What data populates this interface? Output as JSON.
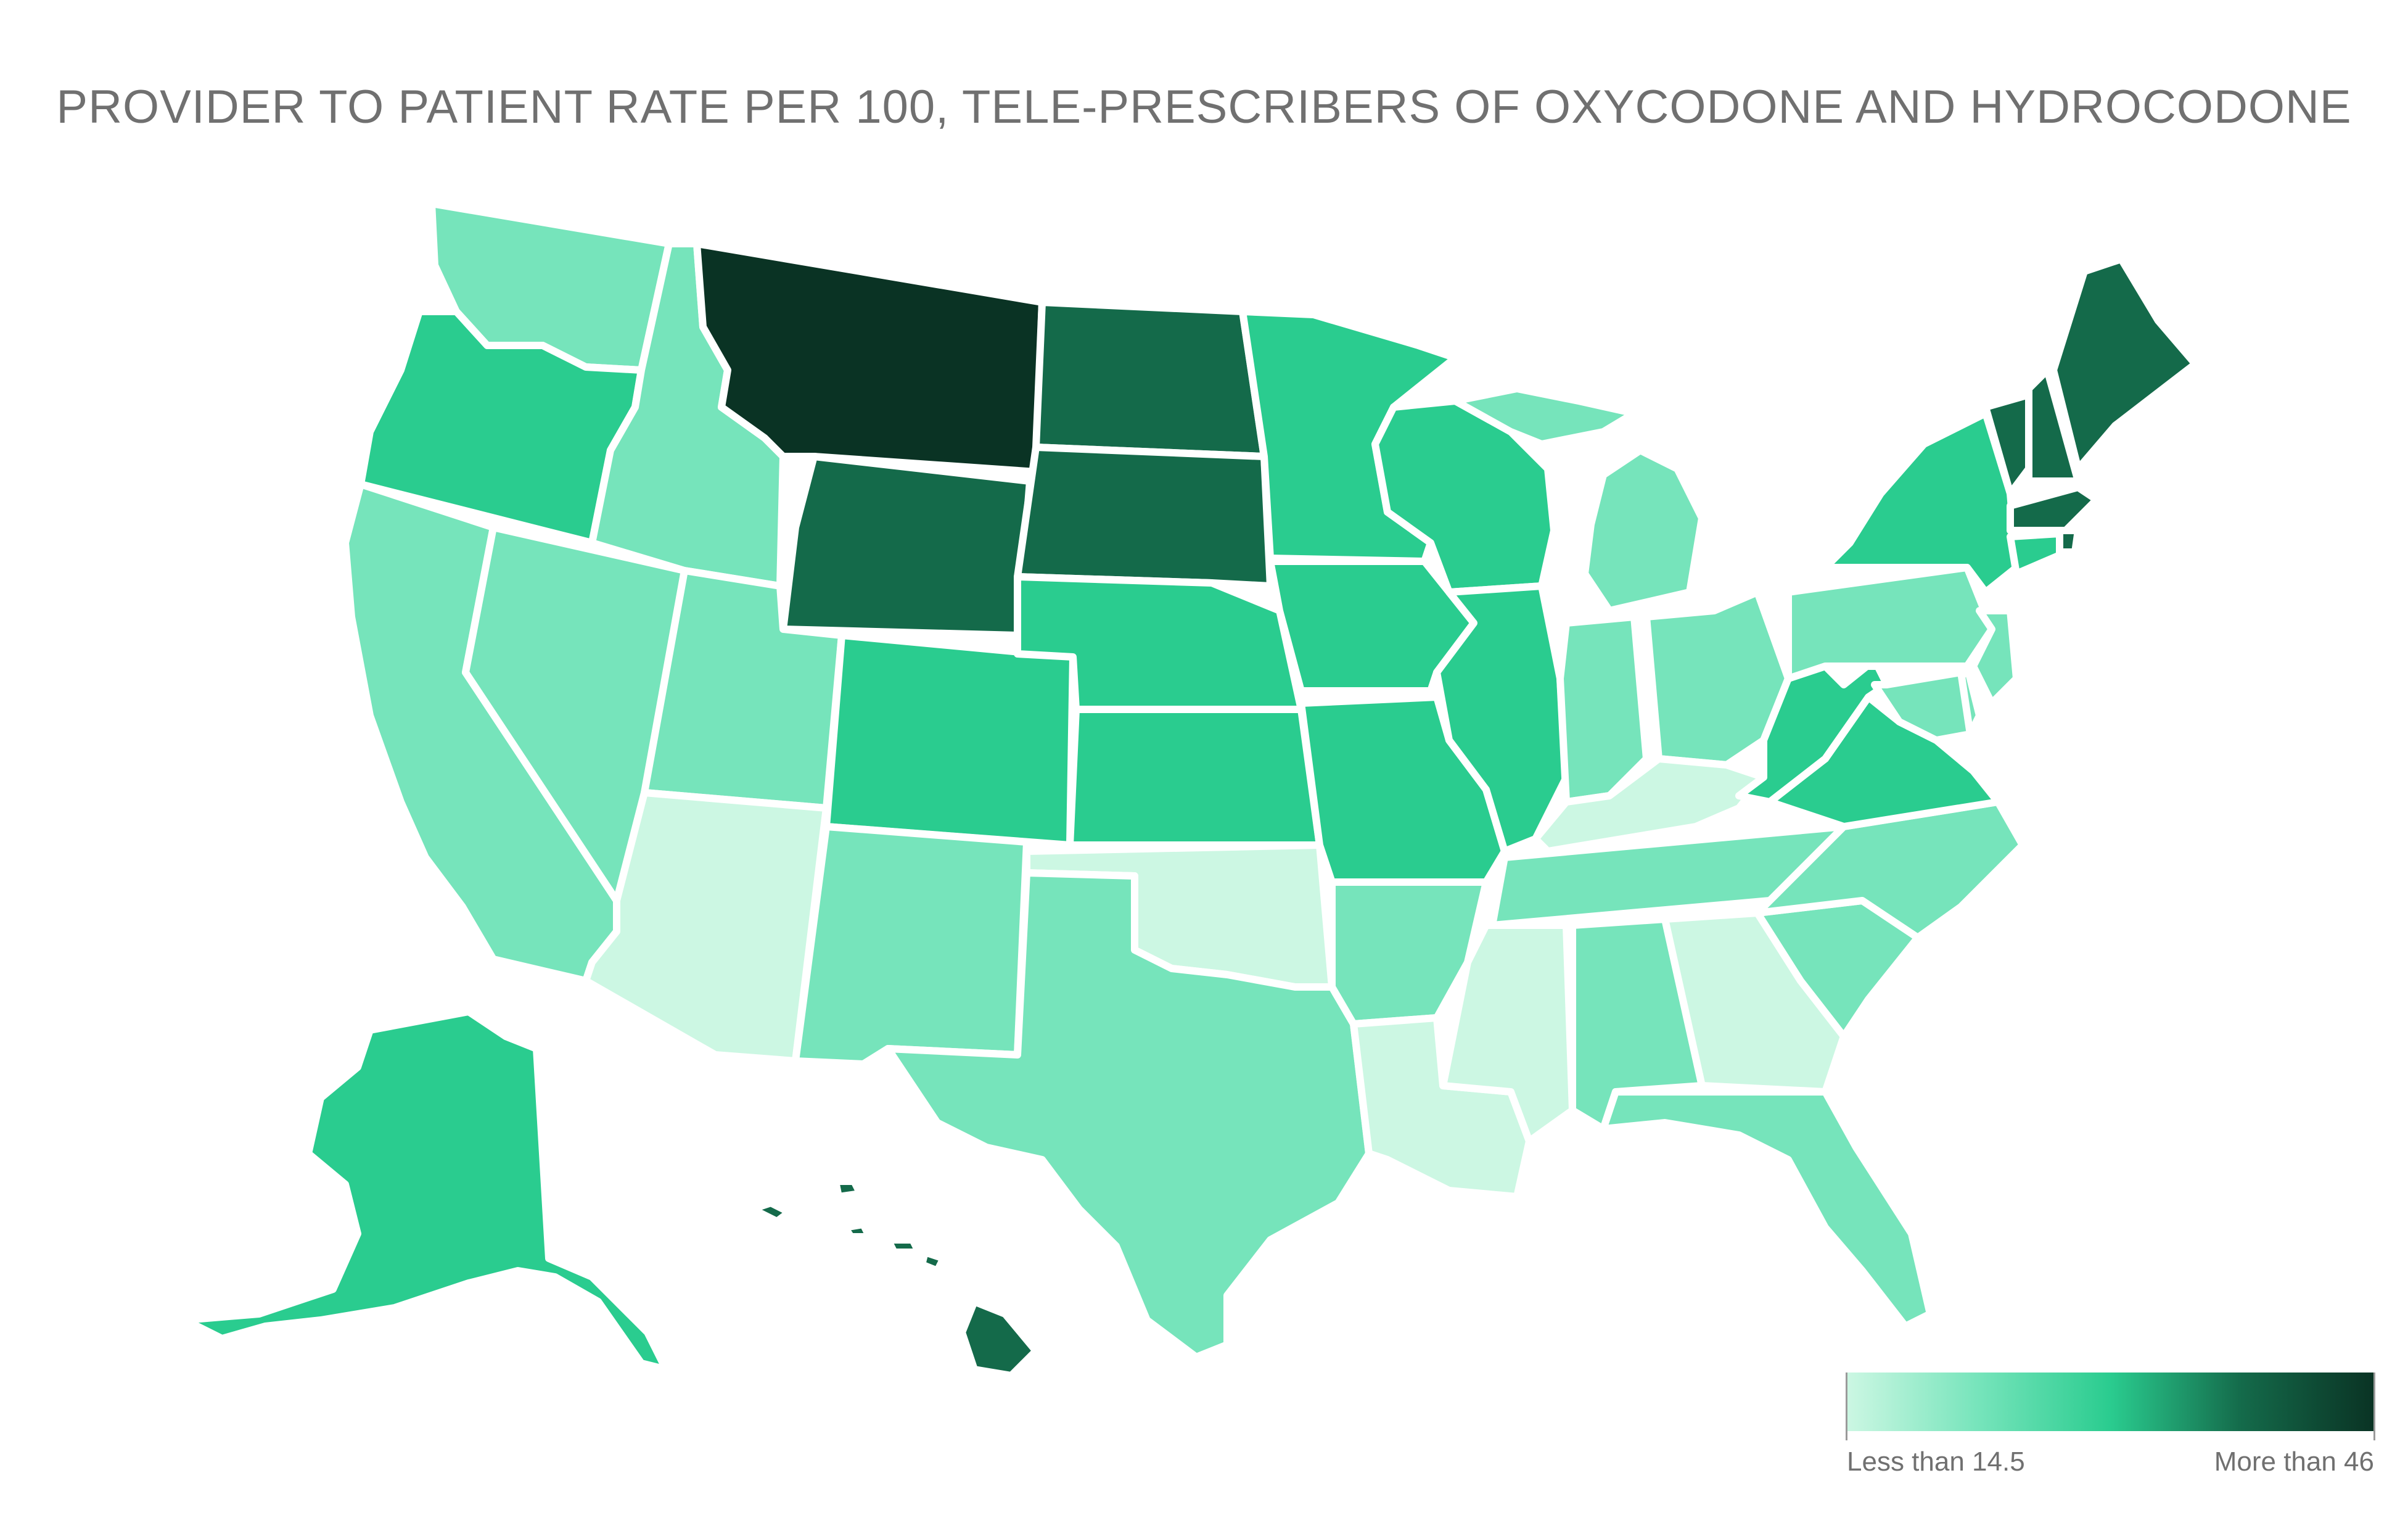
{
  "title": "PROVIDER TO PATIENT RATE PER 100, TELE-PRESCRIBERS OF OXYCODONE AND HYDROCODONE",
  "legend": {
    "min_label": "Less than 14.5",
    "max_label": "More than 46",
    "colors": [
      "#ccf7e3",
      "#76e4bb",
      "#2acc8f",
      "#146a4a",
      "#0a3324"
    ]
  },
  "classes": {
    "1": "#ccf7e3",
    "2": "#76e4bb",
    "3": "#2acc8f",
    "4": "#146a4a",
    "5": "#0a3324"
  },
  "states": [
    {
      "code": "WA",
      "class": 2
    },
    {
      "code": "OR",
      "class": 3
    },
    {
      "code": "CA",
      "class": 2
    },
    {
      "code": "NV",
      "class": 2
    },
    {
      "code": "ID",
      "class": 2
    },
    {
      "code": "MT",
      "class": 5
    },
    {
      "code": "WY",
      "class": 4
    },
    {
      "code": "UT",
      "class": 2
    },
    {
      "code": "AZ",
      "class": 1
    },
    {
      "code": "CO",
      "class": 3
    },
    {
      "code": "NM",
      "class": 2
    },
    {
      "code": "ND",
      "class": 4
    },
    {
      "code": "SD",
      "class": 4
    },
    {
      "code": "NE",
      "class": 3
    },
    {
      "code": "KS",
      "class": 3
    },
    {
      "code": "OK",
      "class": 1
    },
    {
      "code": "TX",
      "class": 2
    },
    {
      "code": "MN",
      "class": 3
    },
    {
      "code": "IA",
      "class": 3
    },
    {
      "code": "MO",
      "class": 3
    },
    {
      "code": "AR",
      "class": 2
    },
    {
      "code": "LA",
      "class": 1
    },
    {
      "code": "WI",
      "class": 3
    },
    {
      "code": "IL",
      "class": 3
    },
    {
      "code": "MI",
      "class": 2
    },
    {
      "code": "IN",
      "class": 2
    },
    {
      "code": "OH",
      "class": 2
    },
    {
      "code": "KY",
      "class": 1
    },
    {
      "code": "TN",
      "class": 2
    },
    {
      "code": "MS",
      "class": 1
    },
    {
      "code": "AL",
      "class": 2
    },
    {
      "code": "GA",
      "class": 1
    },
    {
      "code": "FL",
      "class": 2
    },
    {
      "code": "SC",
      "class": 2
    },
    {
      "code": "NC",
      "class": 2
    },
    {
      "code": "VA",
      "class": 3
    },
    {
      "code": "WV",
      "class": 3
    },
    {
      "code": "PA",
      "class": 2
    },
    {
      "code": "NY",
      "class": 3
    },
    {
      "code": "VT",
      "class": 4
    },
    {
      "code": "NH",
      "class": 4
    },
    {
      "code": "ME",
      "class": 4
    },
    {
      "code": "MA",
      "class": 4
    },
    {
      "code": "RI",
      "class": 4
    },
    {
      "code": "CT",
      "class": 3
    },
    {
      "code": "NJ",
      "class": 2
    },
    {
      "code": "DE",
      "class": 2
    },
    {
      "code": "MD",
      "class": 2
    },
    {
      "code": "AK",
      "class": 3
    },
    {
      "code": "HI",
      "class": 4
    }
  ]
}
